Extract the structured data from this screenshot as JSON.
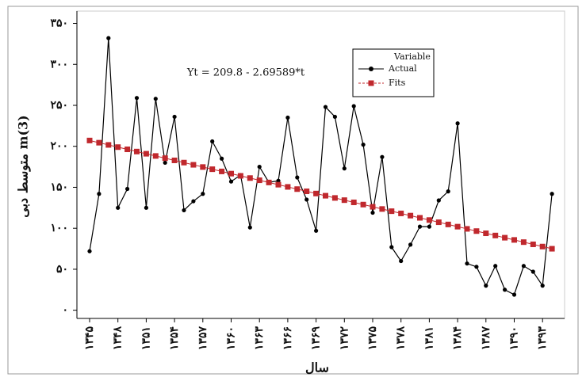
{
  "chart_data": {
    "type": "line",
    "annotation": "Yt = 209.8 - 2.69589*t",
    "xlabel": "سال",
    "ylabel": "متوسط دبی m(3)",
    "legend_title": "Variable",
    "legend": "top-right",
    "categories": [
      "۱۳۴۵",
      null,
      null,
      "۱۳۴۸",
      null,
      null,
      "۱۳۵۱",
      null,
      null,
      "۱۳۵۴",
      null,
      null,
      "۱۳۵۷",
      null,
      null,
      "۱۳۶۰",
      null,
      null,
      "۱۳۶۳",
      null,
      null,
      "۱۳۶۶",
      null,
      null,
      "۱۳۶۹",
      null,
      null,
      "۱۳۷۲",
      null,
      null,
      "۱۳۷۵",
      null,
      null,
      "۱۳۷۸",
      null,
      null,
      "۱۳۸۱",
      null,
      null,
      "۱۳۸۴",
      null,
      null,
      "۱۳۸۷",
      null,
      null,
      "۱۳۹۰",
      null,
      null,
      "۱۳۹۳",
      null
    ],
    "series": [
      {
        "name": "Actual",
        "color": "#000000",
        "marker": "circle",
        "values": [
          72,
          142,
          332,
          125,
          148,
          259,
          125,
          258,
          180,
          236,
          122,
          133,
          142,
          206,
          185,
          157,
          165,
          101,
          175,
          156,
          158,
          235,
          162,
          135,
          97,
          248,
          236,
          173,
          249,
          202,
          119,
          187,
          77,
          60,
          80,
          102,
          102,
          134,
          145,
          228,
          57,
          53,
          30,
          54,
          25,
          19,
          54,
          47,
          30,
          142
        ]
      },
      {
        "name": "Fits",
        "color": "#c0282d",
        "marker": "square",
        "values": [
          207.1,
          204.41,
          201.71,
          199.02,
          196.32,
          193.62,
          190.93,
          188.23,
          185.54,
          182.84,
          180.15,
          177.45,
          174.75,
          172.06,
          169.36,
          166.67,
          163.97,
          161.27,
          158.58,
          155.88,
          153.19,
          150.49,
          147.79,
          145.1,
          142.4,
          139.71,
          137.01,
          134.32,
          131.62,
          128.92,
          126.23,
          123.53,
          120.84,
          118.14,
          115.44,
          112.75,
          110.05,
          107.36,
          104.66,
          101.96,
          99.27,
          96.57,
          93.88,
          91.18,
          88.48,
          85.79,
          83.09,
          80.4,
          77.7,
          75.01
        ]
      }
    ],
    "ylim": [
      -10,
      365
    ],
    "yticks": [
      {
        "value": 0,
        "label": "۰"
      },
      {
        "value": 50,
        "label": "۵۰"
      },
      {
        "value": 100,
        "label": "۱۰۰"
      },
      {
        "value": 150,
        "label": "۱۵۰"
      },
      {
        "value": 200,
        "label": "۲۰۰"
      },
      {
        "value": 250,
        "label": "۲۵۰"
      },
      {
        "value": 300,
        "label": "۳۰۰"
      },
      {
        "value": 350,
        "label": "۳۵۰"
      }
    ]
  }
}
